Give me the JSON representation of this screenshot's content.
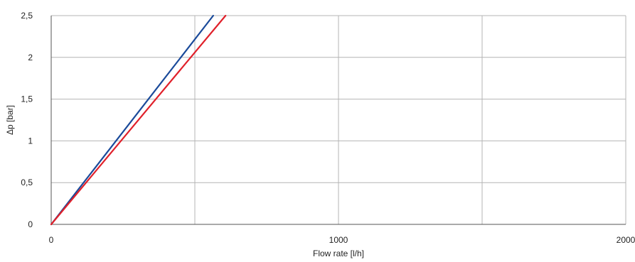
{
  "chart_data": {
    "type": "line",
    "title": "",
    "xlabel": "Flow rate [l/h]",
    "ylabel": "Δp [bar]",
    "xlim": [
      0,
      2000
    ],
    "ylim": [
      0,
      2.5
    ],
    "x_ticks": [
      {
        "value": 0,
        "label": "0"
      },
      {
        "value": 1000,
        "label": "1000"
      },
      {
        "value": 2000,
        "label": "2000"
      }
    ],
    "x_gridlines": [
      0,
      500,
      1000,
      1500,
      2000
    ],
    "y_ticks": [
      {
        "value": 0,
        "label": "0"
      },
      {
        "value": 0.5,
        "label": "0,5"
      },
      {
        "value": 1,
        "label": "1"
      },
      {
        "value": 1.5,
        "label": "1,5"
      },
      {
        "value": 2,
        "label": "2"
      },
      {
        "value": 2.5,
        "label": "2,5"
      }
    ],
    "grid": true,
    "legend": "none",
    "series": [
      {
        "color": "#1a4a9a",
        "x": [
          0,
          564
        ],
        "y": [
          0,
          2.5
        ]
      },
      {
        "color": "#e0202a",
        "x": [
          0,
          607
        ],
        "y": [
          0,
          2.5
        ]
      }
    ]
  }
}
